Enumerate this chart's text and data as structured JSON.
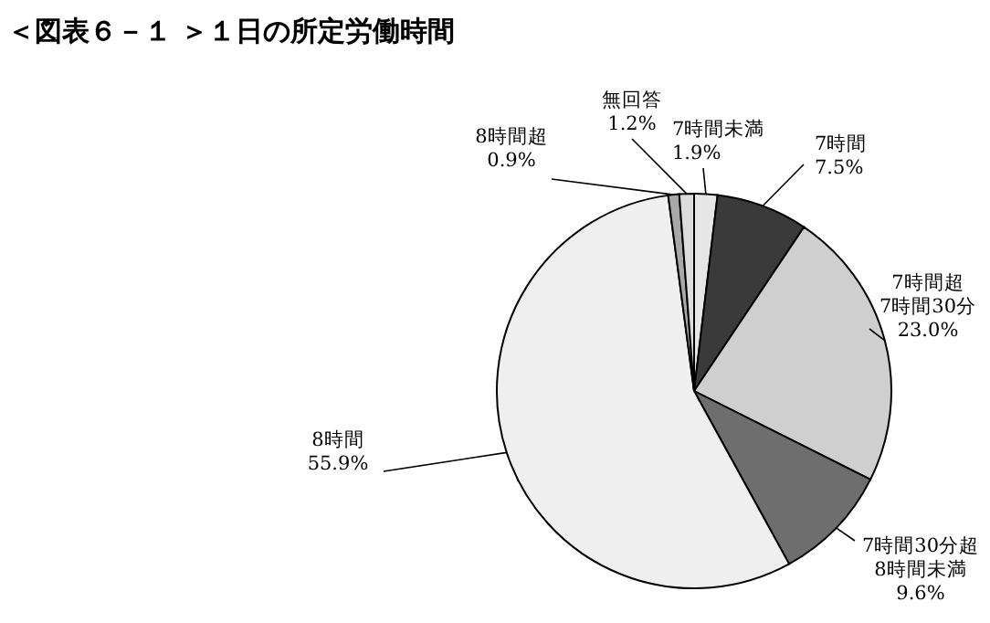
{
  "chart_data": {
    "type": "pie",
    "title": "＜図表６－１ ＞１日の所定労働時間",
    "categories": [
      "7時間未満",
      "7時間",
      "7時間超\n7時間30分",
      "7時間30分超\n8時間未満",
      "8時間",
      "8時間超",
      "無回答"
    ],
    "values": [
      1.9,
      7.5,
      23.0,
      9.6,
      55.9,
      0.9,
      1.2
    ],
    "value_labels": [
      "1.9%",
      "7.5%",
      "23.0%",
      "9.6%",
      "55.9%",
      "0.9%",
      "1.2%"
    ],
    "colors": [
      "#e6e6e6",
      "#3a3a3a",
      "#cfcfcf",
      "#6e6e6e",
      "#efefef",
      "#a8a8a8",
      "#dcdcdc"
    ]
  }
}
